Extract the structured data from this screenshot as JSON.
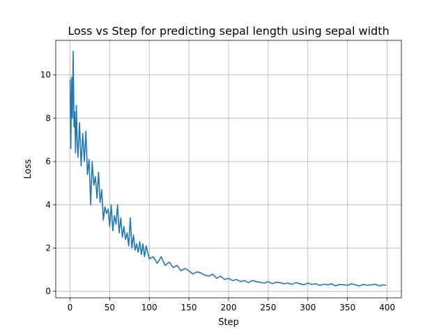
{
  "chart_data": {
    "type": "line",
    "title": "Loss vs Step for predicting sepal length using sepal width",
    "xlabel": "Step",
    "ylabel": "Loss",
    "xlim": [
      -18,
      418
    ],
    "ylim": [
      -0.3,
      11.6
    ],
    "xticks": [
      0,
      50,
      100,
      150,
      200,
      250,
      300,
      350,
      400
    ],
    "yticks": [
      0,
      2,
      4,
      6,
      8,
      10
    ],
    "grid": true,
    "legend": "none",
    "series": [
      {
        "color": "#1f77b4",
        "x": [
          0,
          1,
          2,
          3,
          4,
          5,
          6,
          7,
          8,
          9,
          10,
          12,
          14,
          16,
          18,
          20,
          22,
          24,
          26,
          28,
          30,
          32,
          34,
          36,
          38,
          40,
          42,
          44,
          46,
          48,
          50,
          52,
          54,
          56,
          58,
          60,
          62,
          64,
          66,
          68,
          70,
          72,
          74,
          76,
          78,
          80,
          82,
          84,
          86,
          88,
          90,
          92,
          94,
          96,
          98,
          100,
          105,
          110,
          115,
          120,
          125,
          130,
          135,
          140,
          145,
          150,
          155,
          160,
          165,
          170,
          175,
          180,
          185,
          190,
          195,
          200,
          205,
          210,
          215,
          220,
          225,
          230,
          235,
          240,
          245,
          250,
          255,
          260,
          265,
          270,
          275,
          280,
          285,
          290,
          295,
          300,
          305,
          310,
          315,
          320,
          325,
          330,
          335,
          340,
          345,
          350,
          355,
          360,
          365,
          370,
          375,
          380,
          385,
          390,
          395,
          399
        ],
        "y": [
          9.8,
          6.6,
          9.9,
          8.0,
          11.1,
          7.6,
          8.3,
          6.4,
          8.6,
          7.0,
          6.2,
          7.8,
          5.8,
          7.3,
          6.0,
          7.4,
          5.4,
          6.1,
          4.0,
          6.0,
          4.9,
          5.3,
          4.3,
          5.5,
          4.1,
          4.7,
          3.3,
          3.9,
          3.6,
          3.8,
          3.0,
          4.0,
          2.8,
          3.5,
          3.1,
          4.0,
          2.7,
          3.4,
          2.5,
          3.0,
          2.4,
          2.7,
          2.1,
          3.4,
          2.0,
          2.6,
          1.9,
          2.2,
          1.8,
          2.3,
          1.7,
          2.2,
          1.6,
          2.1,
          1.8,
          1.5,
          1.6,
          1.3,
          1.6,
          1.2,
          1.35,
          1.1,
          1.2,
          0.95,
          1.05,
          0.95,
          0.8,
          0.9,
          0.85,
          0.75,
          0.7,
          0.8,
          0.6,
          0.7,
          0.55,
          0.6,
          0.5,
          0.55,
          0.45,
          0.5,
          0.4,
          0.5,
          0.45,
          0.42,
          0.38,
          0.45,
          0.35,
          0.42,
          0.4,
          0.35,
          0.38,
          0.32,
          0.4,
          0.35,
          0.3,
          0.38,
          0.32,
          0.35,
          0.28,
          0.33,
          0.3,
          0.35,
          0.25,
          0.32,
          0.3,
          0.28,
          0.35,
          0.3,
          0.25,
          0.32,
          0.28,
          0.3,
          0.33,
          0.25,
          0.3,
          0.28
        ]
      }
    ]
  }
}
